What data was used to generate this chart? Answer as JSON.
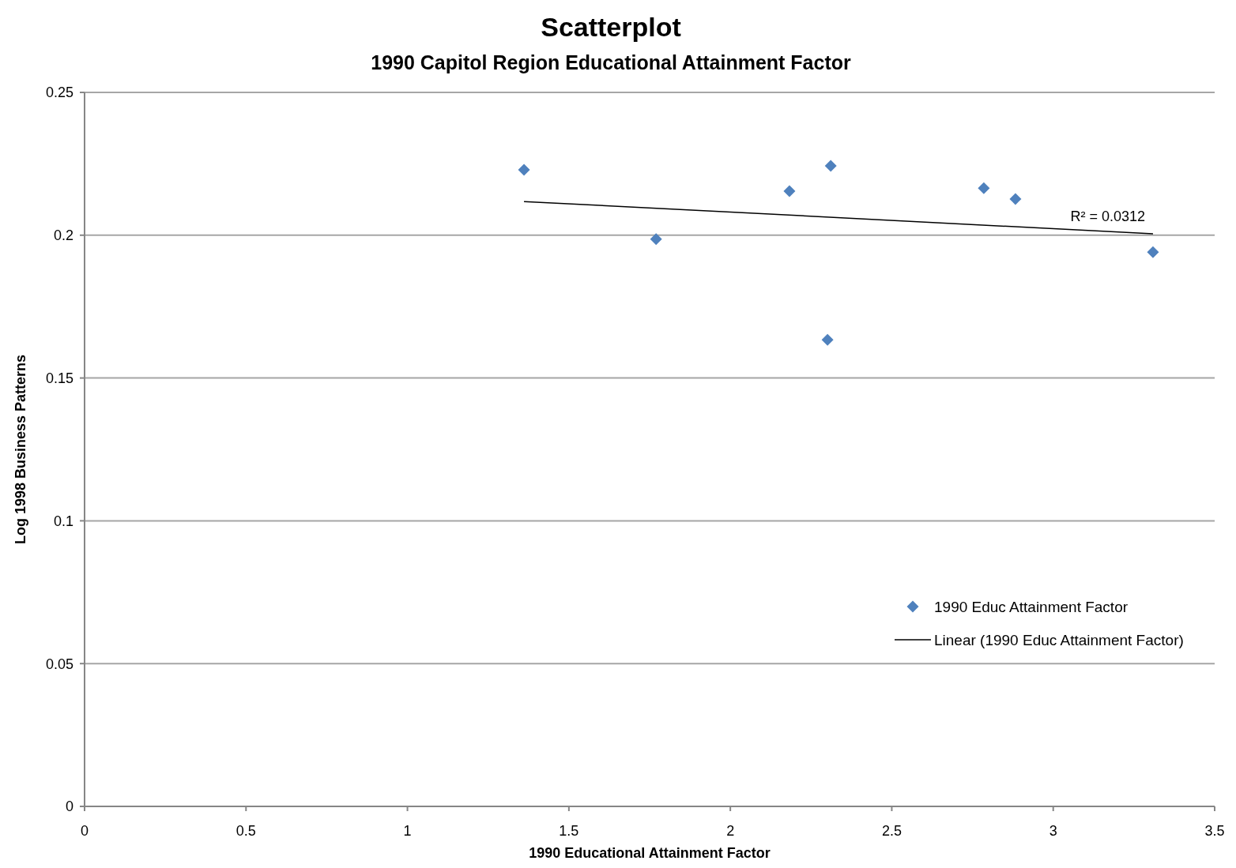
{
  "chart_data": {
    "type": "scatter",
    "title": "Scatterplot",
    "subtitle": "1990 Capitol Region Educational Attainment Factor",
    "xlabel": "1990 Educational Attainment Factor",
    "ylabel": "Log 1998 Business Patterns",
    "xlim": [
      0,
      3.5
    ],
    "xticks": [
      0,
      0.5,
      1,
      1.5,
      2,
      2.5,
      3,
      3.5
    ],
    "ylim": [
      0,
      0.25
    ],
    "yticks": [
      0,
      0.05,
      0.1,
      0.15,
      0.2,
      0.25
    ],
    "grid": "y",
    "legend": "bottom right",
    "marker": "diamond",
    "series": [
      {
        "name": "1990 Educ Attainment Factor",
        "color": "#4f81bd",
        "x": [
          1.361,
          1.77,
          2.183,
          2.311,
          2.301,
          2.785,
          2.883,
          3.309
        ],
        "values": [
          0.2229,
          0.1986,
          0.2154,
          0.2243,
          0.1634,
          0.2165,
          0.2127,
          0.1941
        ]
      },
      {
        "name": "Linear (1990 Educ Attainment Factor)",
        "type": "line",
        "color": "#000000",
        "marker": "none",
        "line_style": "solid",
        "x": [
          1.361,
          3.309
        ],
        "values": [
          0.2118,
          0.2005
        ]
      }
    ],
    "annotations": [
      "R² = 0.0312"
    ]
  }
}
